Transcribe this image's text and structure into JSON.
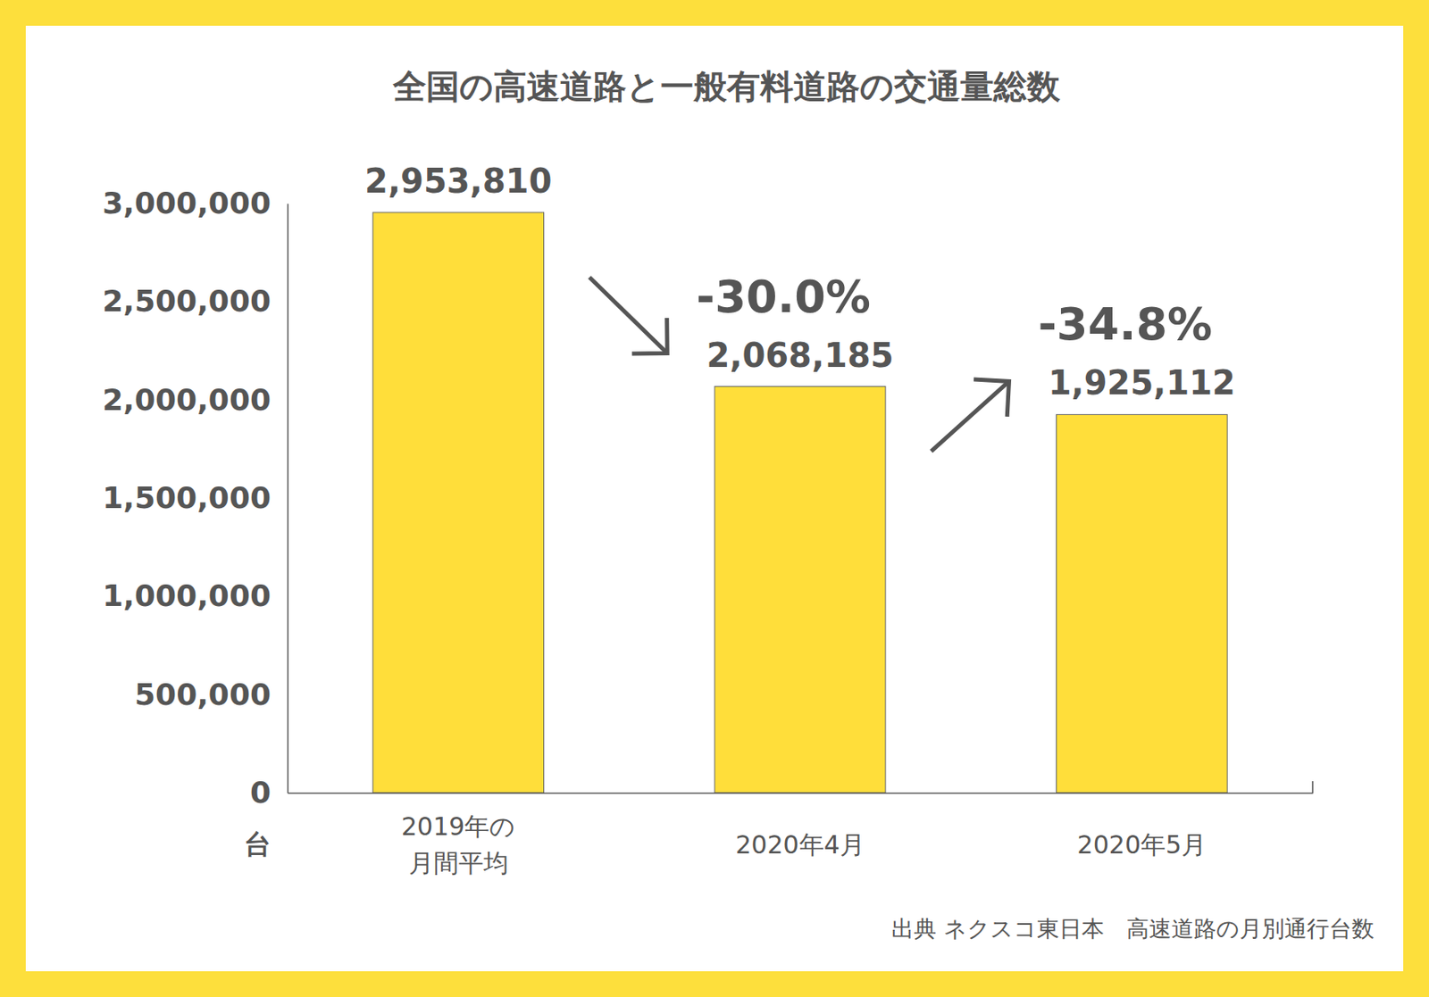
{
  "chart_data": {
    "type": "bar",
    "title": "全国の高速道路と一般有料道路の交通量総数",
    "categories": [
      "2019年の\n月間平均",
      "2020年4月",
      "2020年5月"
    ],
    "values": [
      2953810,
      2068185,
      1925112
    ],
    "value_labels": [
      "2,953,810",
      "2,068,185",
      "1,925,112"
    ],
    "data_labels": true,
    "color": "#FFDE3A",
    "ylim": [
      0,
      3000000
    ],
    "yticks": [
      0,
      {
        "value": 500000,
        "label": "500,000"
      },
      {
        "value": 1000000,
        "label": "1,000,000"
      },
      {
        "value": 1500000,
        "label": "1,500,000"
      },
      {
        "value": 2000000,
        "label": "2,000,000"
      },
      {
        "value": 2500000,
        "label": "2,500,000"
      },
      {
        "value": 3000000,
        "label": "3,000,000"
      }
    ],
    "grid": false,
    "ylabel": "台",
    "annotations": [
      "-30.0%",
      "-34.8%"
    ],
    "source": "出典 ネクスコ東日本　高速道路の月別通行台数"
  }
}
